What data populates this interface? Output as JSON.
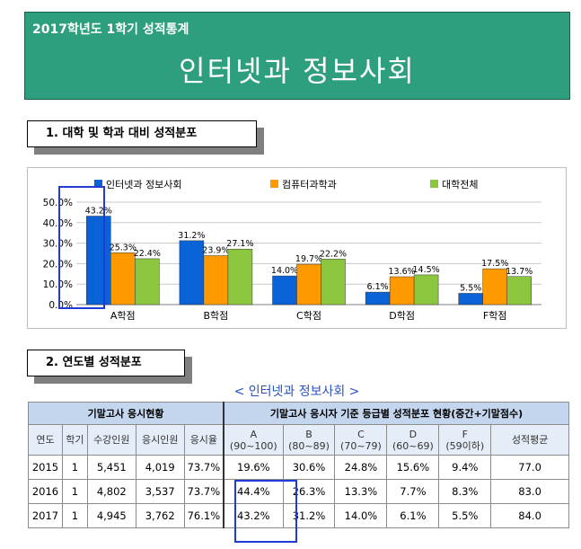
{
  "banner": {
    "subtitle": "2017학년도 1학기 성적통계",
    "title": "인터넷과 정보사회"
  },
  "section1": {
    "title": "1. 대학 및 학과 대비 성적분포"
  },
  "section2": {
    "title": "2. 연도별 성적분포"
  },
  "colors": {
    "series1": "#0a63d6",
    "series2": "#ff9900",
    "series3": "#8cc63f",
    "banner": "#2e9f7e",
    "highlight": "#1f3bd6"
  },
  "chart_data": {
    "type": "bar",
    "categories": [
      "A학점",
      "B학점",
      "C학점",
      "D학점",
      "F학점"
    ],
    "series": [
      {
        "name": "인터넷과 정보사회",
        "values": [
          43.2,
          31.2,
          14.0,
          6.1,
          5.5
        ],
        "labels": [
          "43.2%",
          "31.2%",
          "14.0%",
          "6.1%",
          "5.5%"
        ],
        "color": "#0a63d6"
      },
      {
        "name": "컴퓨터과학과",
        "values": [
          25.3,
          23.9,
          19.7,
          13.6,
          17.5
        ],
        "labels": [
          "25.3%",
          "23.9%",
          "19.7%",
          "13.6%",
          "17.5%"
        ],
        "color": "#ff9900"
      },
      {
        "name": "대학전체",
        "values": [
          22.4,
          27.1,
          22.2,
          14.5,
          13.7
        ],
        "labels": [
          "22.4%",
          "27.1%",
          "22.2%",
          "14.5%",
          "13.7%"
        ],
        "color": "#8cc63f"
      }
    ],
    "yticks": [
      "0.0%",
      "10.0%",
      "20.0%",
      "30.0%",
      "40.0%",
      "50.0%"
    ],
    "ylim": [
      0,
      50
    ],
    "legend": "top",
    "grid": true
  },
  "table": {
    "caption": "< 인터넷과 정보사회 >",
    "group1": "기말고사 응시현황",
    "group2": "기말고사 응시자 기준 등급별 성적분포 현황(중간+기말점수)",
    "headers": [
      "연도",
      "학기",
      "수강인원",
      "응시인원",
      "응시율",
      "A",
      "(90~100)",
      "B",
      "(80~89)",
      "C",
      "(70~79)",
      "D",
      "(60~69)",
      "F",
      "(59이하)",
      "성적평균"
    ],
    "rows": [
      [
        "2015",
        "1",
        "5,451",
        "4,019",
        "73.7%",
        "19.6%",
        "30.6%",
        "24.8%",
        "15.6%",
        "9.4%",
        "77.0"
      ],
      [
        "2016",
        "1",
        "4,802",
        "3,537",
        "73.7%",
        "44.4%",
        "26.3%",
        "13.3%",
        "7.7%",
        "8.3%",
        "83.0"
      ],
      [
        "2017",
        "1",
        "4,945",
        "3,762",
        "76.1%",
        "43.2%",
        "31.2%",
        "14.0%",
        "6.1%",
        "5.5%",
        "84.0"
      ]
    ]
  }
}
